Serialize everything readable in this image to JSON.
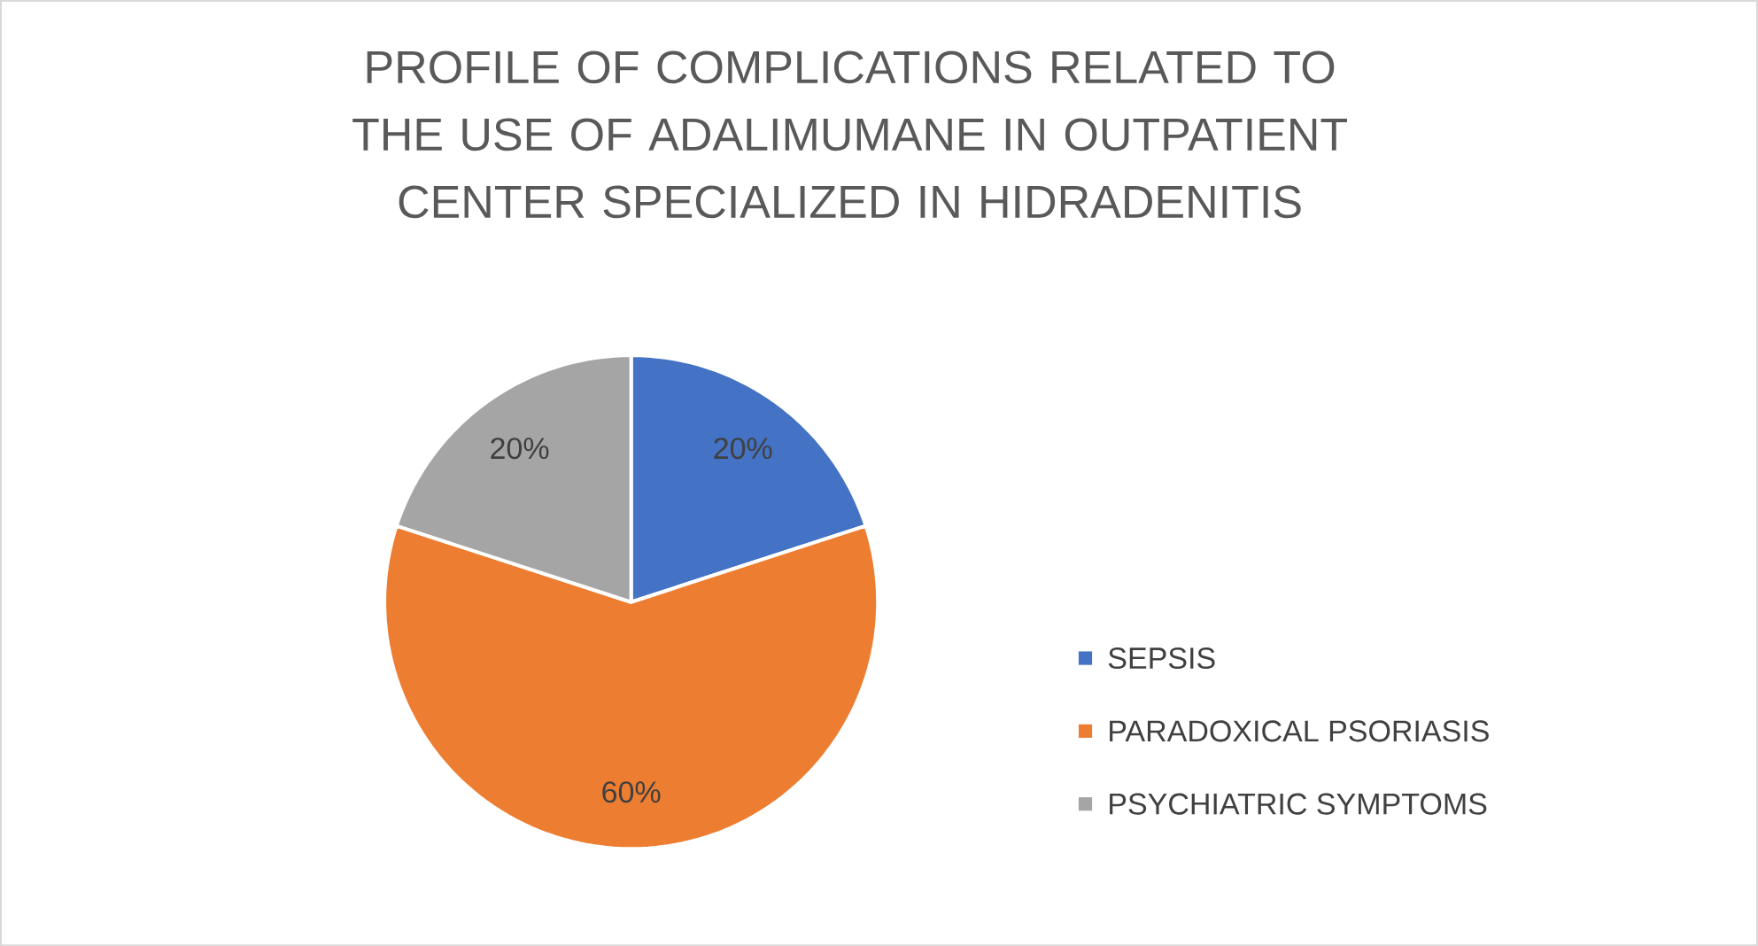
{
  "chart_data": {
    "type": "pie",
    "title": "PROFILE OF COMPLICATIONS RELATED TO THE USE OF ADALIMUMANE IN OUTPATIENT CENTER SPECIALIZED IN HIDRADENITIS",
    "categories": [
      "SEPSIS",
      "PARADOXICAL PSORIASIS",
      "PSYCHIATRIC SYMPTOMS"
    ],
    "values": [
      20,
      60,
      20
    ],
    "colors": [
      "#4472c4",
      "#ed7d31",
      "#a5a5a5"
    ],
    "value_labels": [
      "20%",
      "60%",
      "20%"
    ],
    "legend": "right"
  }
}
